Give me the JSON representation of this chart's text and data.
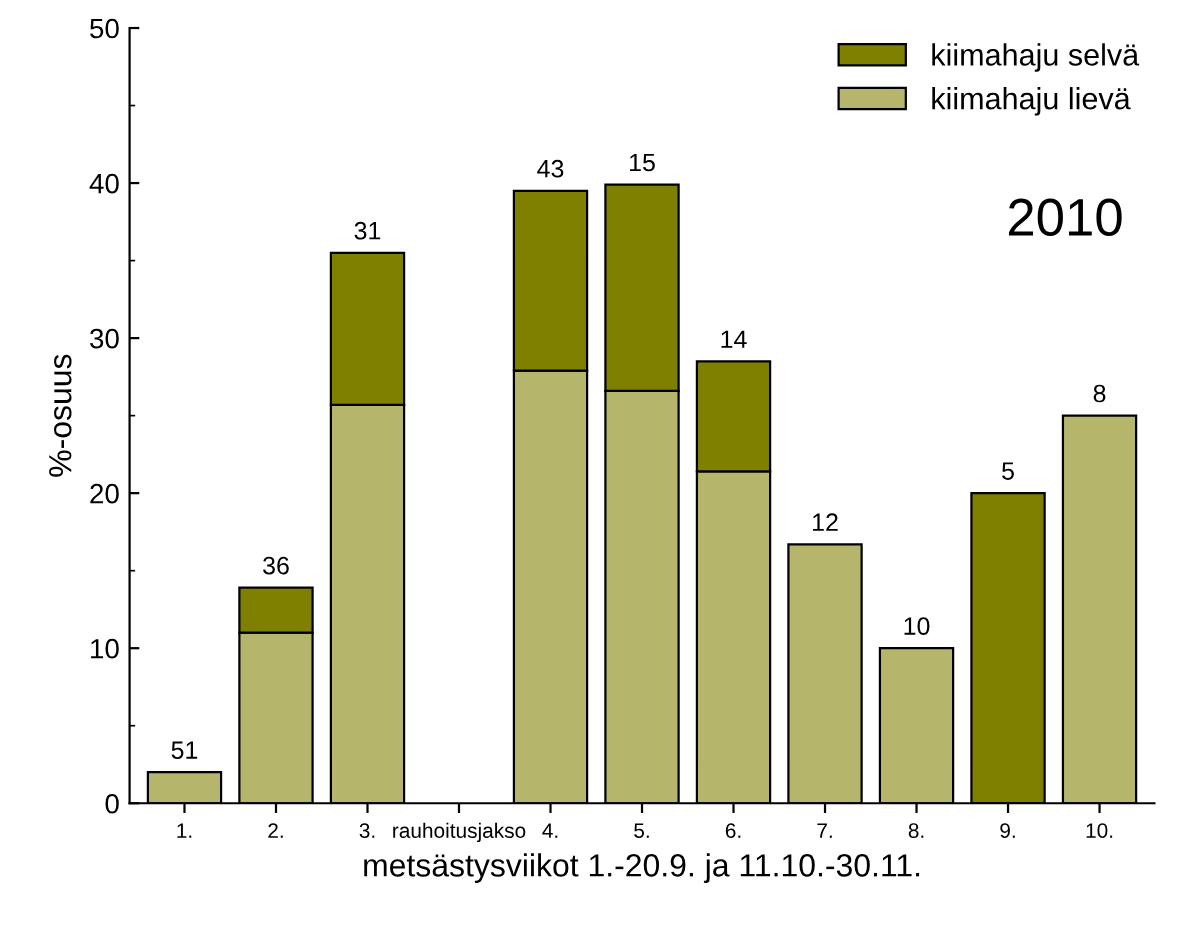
{
  "chart_data": {
    "type": "bar",
    "stacked": true,
    "xlabel": "metsästysviikot 1.-20.9. ja 11.10.-30.11.",
    "ylabel": "%-osuus",
    "categories": [
      "1.",
      "2.",
      "3.",
      "rauhoitusjakso",
      "4.",
      "5.",
      "6.",
      "7.",
      "8.",
      "9.",
      "10."
    ],
    "series": [
      {
        "name": "kiimahaju lievä",
        "color": "#b5b56b",
        "values": [
          2,
          11,
          25.7,
          null,
          27.9,
          26.6,
          21.4,
          16.7,
          10,
          null,
          25
        ]
      },
      {
        "name": "kiimahaju selvä",
        "color": "#7f7f00",
        "values": [
          null,
          2.9,
          9.8,
          null,
          11.6,
          13.3,
          7.1,
          null,
          null,
          20,
          null
        ]
      }
    ],
    "ylim": [
      0,
      50
    ],
    "yticks": [
      0,
      10,
      20,
      30,
      40,
      50
    ],
    "grid": false,
    "legend": "top right",
    "annotations": [
      "2010",
      {
        "text": "51",
        "x": "1.",
        "y": 2
      },
      {
        "text": "36",
        "x": "2.",
        "y": 13.9
      },
      {
        "text": "31",
        "x": "3.",
        "y": 35.5
      },
      {
        "text": "43",
        "x": "4.",
        "y": 39.5
      },
      {
        "text": "15",
        "x": "5.",
        "y": 39.9
      },
      {
        "text": "14",
        "x": "6.",
        "y": 28.5
      },
      {
        "text": "12",
        "x": "7.",
        "y": 16.7
      },
      {
        "text": "10",
        "x": "8.",
        "y": 10
      },
      {
        "text": "5",
        "x": "9.",
        "y": 20
      },
      {
        "text": "8",
        "x": "10.",
        "y": 25
      }
    ]
  }
}
